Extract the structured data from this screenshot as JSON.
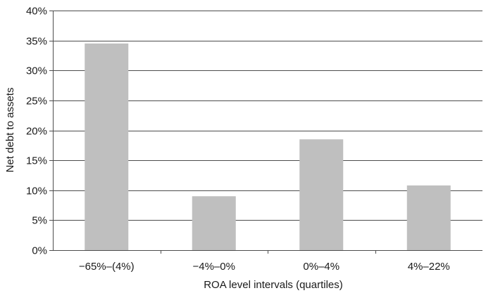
{
  "chart_data": {
    "type": "bar",
    "categories": [
      "−65%–(4%)",
      "−4%–0%",
      "0%–4%",
      "4%–22%"
    ],
    "values": [
      34.5,
      9.0,
      18.5,
      10.8
    ],
    "value_unit": "%",
    "xlabel": "ROA level intervals (quartiles)",
    "ylabel": "Net debt to assets",
    "ylim": [
      0,
      40
    ],
    "yticks": [
      "0%",
      "5%",
      "10%",
      "15%",
      "20%",
      "25%",
      "30%",
      "35%",
      "40%"
    ],
    "grid": true,
    "legend": "none",
    "bar_color": "#bfbfbf",
    "grid_color": "#4d4d4d",
    "axis_color": "#4d4d4d"
  }
}
